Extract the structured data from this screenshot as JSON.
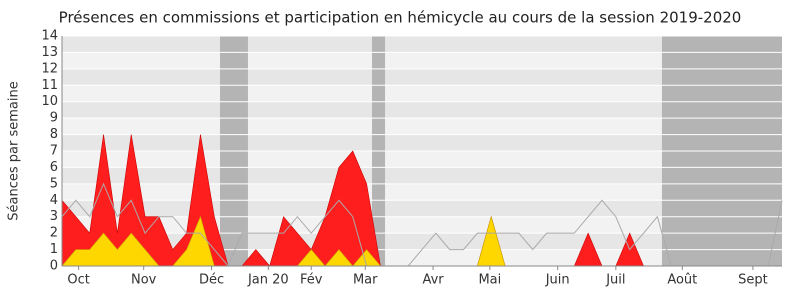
{
  "chart_data": {
    "type": "area",
    "title": "Présences en commissions et participation en hémicycle au cours de la session 2019-2020",
    "y_label": "Séances par semaine",
    "x": [
      0,
      1,
      2,
      3,
      4,
      5,
      6,
      7,
      8,
      9,
      10,
      11,
      12,
      13,
      14,
      15,
      16,
      17,
      18,
      19,
      20,
      21,
      22,
      23,
      24,
      25,
      26,
      27,
      28,
      29,
      30,
      31,
      32,
      33,
      34,
      35,
      36,
      37,
      38,
      39,
      40,
      41,
      42,
      43,
      44,
      45,
      46,
      47,
      48,
      49,
      50,
      51,
      52
    ],
    "xlim": [
      0,
      52
    ],
    "xticks": [
      {
        "value": 1.2,
        "label": "Oct"
      },
      {
        "value": 5.9,
        "label": "Nov"
      },
      {
        "value": 10.8,
        "label": "Déc"
      },
      {
        "value": 14.9,
        "label": "Jan 20"
      },
      {
        "value": 18,
        "label": "Fév"
      },
      {
        "value": 21.9,
        "label": "Mar"
      },
      {
        "value": 26.8,
        "label": "Avr"
      },
      {
        "value": 30.9,
        "label": "Mai"
      },
      {
        "value": 35.8,
        "label": "Juin"
      },
      {
        "value": 40,
        "label": "Juil"
      },
      {
        "value": 44.8,
        "label": "Août"
      },
      {
        "value": 49.9,
        "label": "Sept"
      }
    ],
    "ylim": [
      0,
      14
    ],
    "yticks": [
      0,
      1,
      2,
      3,
      4,
      5,
      6,
      7,
      8,
      9,
      10,
      11,
      12,
      13,
      14
    ],
    "grid": true,
    "shaded_ranges": [
      [
        11.41,
        13.43
      ],
      [
        22.39,
        23.33
      ],
      [
        43.33,
        52
      ]
    ],
    "shade_color": "#b4b4b4",
    "series": [
      {
        "color": "#ff1e1e",
        "kind": "area",
        "values": [
          4,
          3,
          2,
          8,
          2,
          8,
          3,
          3,
          1,
          2,
          8,
          3,
          0,
          0,
          1,
          0,
          3,
          2,
          1,
          3,
          6,
          7,
          5,
          0,
          0,
          0,
          0,
          0,
          0,
          0,
          0,
          3,
          0,
          0,
          0,
          0,
          0,
          0,
          2,
          0,
          0,
          2,
          0,
          0,
          0,
          0,
          0,
          0,
          0,
          0,
          0,
          0,
          0
        ]
      },
      {
        "color": "#ffd700",
        "kind": "area",
        "values": [
          0,
          1,
          1,
          2,
          1,
          2,
          1,
          0,
          0,
          1,
          3,
          0,
          0,
          0,
          0,
          0,
          0,
          0,
          1,
          0,
          1,
          0,
          1,
          0,
          0,
          0,
          0,
          0,
          0,
          0,
          0,
          3,
          0,
          0,
          0,
          0,
          0,
          0,
          0,
          0,
          0,
          0,
          0,
          0,
          0,
          0,
          0,
          0,
          0,
          0,
          0,
          0,
          0
        ]
      },
      {
        "color": "#aaaaaa",
        "kind": "line",
        "values": [
          3,
          4,
          3,
          5,
          3,
          4,
          2,
          3,
          3,
          2,
          2,
          1,
          0,
          2,
          2,
          2,
          2,
          3,
          2,
          3,
          4,
          3,
          0,
          0,
          0,
          0,
          1,
          2,
          1,
          1,
          2,
          2,
          2,
          2,
          1,
          2,
          2,
          2,
          3,
          4,
          3,
          1,
          2,
          3,
          0,
          0,
          0,
          0,
          0,
          0,
          0,
          0,
          4
        ]
      }
    ]
  }
}
